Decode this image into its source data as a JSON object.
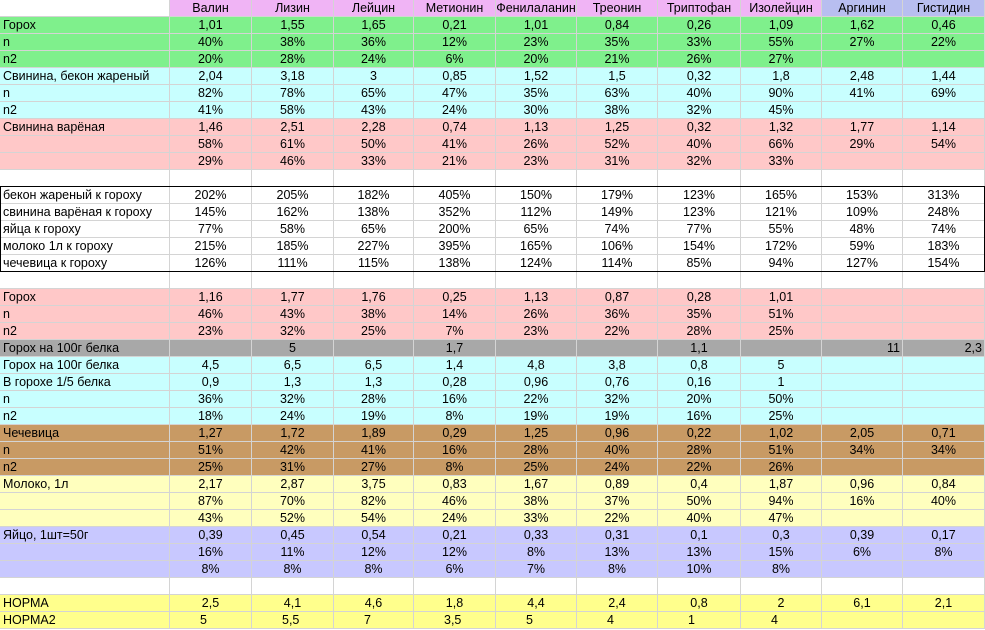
{
  "header": [
    "",
    "Валин",
    "Лизин",
    "Лейцин",
    "Метионин",
    "Фенилаланин",
    "Треонин",
    "Триптофан",
    "Изолейцин",
    "Аргинин",
    "Гистидин"
  ],
  "colors": {
    "header_purple": "#f0b4f5",
    "header_blue": "#b8bef0",
    "green": "#7ff08c",
    "cyan": "#c8ffff",
    "pink": "#ffc8c8",
    "grey": "#a8a8a8",
    "brown": "#c89a64",
    "yellow": "#ffffbe",
    "lavender": "#c8c8ff",
    "bright_yellow": "#ffff8c",
    "white": "#ffffff"
  },
  "rows": [
    {
      "bg": "green",
      "cells": [
        "Горох",
        "1,01",
        "1,55",
        "1,65",
        "0,21",
        "1,01",
        "0,84",
        "0,26",
        "1,09",
        "1,62",
        "0,46"
      ]
    },
    {
      "bg": "green",
      "cells": [
        "n",
        "40%",
        "38%",
        "36%",
        "12%",
        "23%",
        "35%",
        "33%",
        "55%",
        "27%",
        "22%"
      ]
    },
    {
      "bg": "green",
      "cells": [
        "n2",
        "20%",
        "28%",
        "24%",
        "6%",
        "20%",
        "21%",
        "26%",
        "27%",
        "",
        ""
      ]
    },
    {
      "bg": "cyan",
      "cells": [
        "Свинина, бекон жареный",
        "2,04",
        "3,18",
        "3",
        "0,85",
        "1,52",
        "1,5",
        "0,32",
        "1,8",
        "2,48",
        "1,44"
      ]
    },
    {
      "bg": "cyan",
      "cells": [
        "n",
        "82%",
        "78%",
        "65%",
        "47%",
        "35%",
        "63%",
        "40%",
        "90%",
        "41%",
        "69%"
      ]
    },
    {
      "bg": "cyan",
      "cells": [
        "n2",
        "41%",
        "58%",
        "43%",
        "24%",
        "30%",
        "38%",
        "32%",
        "45%",
        "",
        ""
      ]
    },
    {
      "bg": "pink",
      "cells": [
        "Свинина варёная",
        "1,46",
        "2,51",
        "2,28",
        "0,74",
        "1,13",
        "1,25",
        "0,32",
        "1,32",
        "1,77",
        "1,14"
      ]
    },
    {
      "bg": "pink",
      "cells": [
        "",
        "58%",
        "61%",
        "50%",
        "41%",
        "26%",
        "52%",
        "40%",
        "66%",
        "29%",
        "54%"
      ]
    },
    {
      "bg": "pink",
      "cells": [
        "",
        "29%",
        "46%",
        "33%",
        "21%",
        "23%",
        "31%",
        "32%",
        "33%",
        "",
        ""
      ]
    },
    {
      "bg": "white",
      "cells": [
        "",
        "",
        "",
        "",
        "",
        "",
        "",
        "",
        "",
        "",
        ""
      ]
    },
    {
      "bg": "white",
      "cells": [
        "бекон жареный к гороху",
        "202%",
        "205%",
        "182%",
        "405%",
        "150%",
        "179%",
        "123%",
        "165%",
        "153%",
        "313%"
      ]
    },
    {
      "bg": "white",
      "cells": [
        "свинина варёная к гороху",
        "145%",
        "162%",
        "138%",
        "352%",
        "112%",
        "149%",
        "123%",
        "121%",
        "109%",
        "248%"
      ]
    },
    {
      "bg": "white",
      "cells": [
        "яйца к гороху",
        "77%",
        "58%",
        "65%",
        "200%",
        "65%",
        "74%",
        "77%",
        "55%",
        "48%",
        "74%"
      ]
    },
    {
      "bg": "white",
      "cells": [
        "молоко 1л к гороху",
        "215%",
        "185%",
        "227%",
        "395%",
        "165%",
        "106%",
        "154%",
        "172%",
        "59%",
        "183%"
      ]
    },
    {
      "bg": "white",
      "cells": [
        "чечевица к гороху",
        "126%",
        "111%",
        "115%",
        "138%",
        "124%",
        "114%",
        "85%",
        "94%",
        "127%",
        "154%"
      ]
    },
    {
      "bg": "white",
      "cells": [
        "",
        "",
        "",
        "",
        "",
        "",
        "",
        "",
        "",
        "",
        ""
      ]
    },
    {
      "bg": "pink",
      "cells": [
        "Горох",
        "1,16",
        "1,77",
        "1,76",
        "0,25",
        "1,13",
        "0,87",
        "0,28",
        "1,01",
        "",
        ""
      ]
    },
    {
      "bg": "pink",
      "cells": [
        "n",
        "46%",
        "43%",
        "38%",
        "14%",
        "26%",
        "36%",
        "35%",
        "51%",
        "",
        ""
      ]
    },
    {
      "bg": "pink",
      "cells": [
        "n2",
        "23%",
        "32%",
        "25%",
        "7%",
        "23%",
        "22%",
        "28%",
        "25%",
        "",
        ""
      ]
    },
    {
      "bg": "grey",
      "special": "grey",
      "cells": [
        "Горох на 100г белка",
        "",
        "5",
        "",
        "1,7",
        "",
        "",
        "1,1",
        "",
        "11",
        "2,3"
      ]
    },
    {
      "bg": "cyan",
      "cells": [
        "Горох на 100г белка",
        "4,5",
        "6,5",
        "6,5",
        "1,4",
        "4,8",
        "3,8",
        "0,8",
        "5",
        "",
        ""
      ]
    },
    {
      "bg": "cyan",
      "cells": [
        "В горохе 1/5 белка",
        "0,9",
        "1,3",
        "1,3",
        "0,28",
        "0,96",
        "0,76",
        "0,16",
        "1",
        "",
        ""
      ]
    },
    {
      "bg": "cyan",
      "cells": [
        "n",
        "36%",
        "32%",
        "28%",
        "16%",
        "22%",
        "32%",
        "20%",
        "50%",
        "",
        ""
      ]
    },
    {
      "bg": "cyan",
      "cells": [
        "n2",
        "18%",
        "24%",
        "19%",
        "8%",
        "19%",
        "19%",
        "16%",
        "25%",
        "",
        ""
      ]
    },
    {
      "bg": "brown",
      "cells": [
        "Чечевица",
        "1,27",
        "1,72",
        "1,89",
        "0,29",
        "1,25",
        "0,96",
        "0,22",
        "1,02",
        "2,05",
        "0,71"
      ]
    },
    {
      "bg": "brown",
      "cells": [
        "n",
        "51%",
        "42%",
        "41%",
        "16%",
        "28%",
        "40%",
        "28%",
        "51%",
        "34%",
        "34%"
      ]
    },
    {
      "bg": "brown",
      "cells": [
        "n2",
        "25%",
        "31%",
        "27%",
        "8%",
        "25%",
        "24%",
        "22%",
        "26%",
        "",
        ""
      ]
    },
    {
      "bg": "yellow",
      "cells": [
        "Молоко, 1л",
        "2,17",
        "2,87",
        "3,75",
        "0,83",
        "1,67",
        "0,89",
        "0,4",
        "1,87",
        "0,96",
        "0,84"
      ]
    },
    {
      "bg": "yellow",
      "cells": [
        "",
        "87%",
        "70%",
        "82%",
        "46%",
        "38%",
        "37%",
        "50%",
        "94%",
        "16%",
        "40%"
      ]
    },
    {
      "bg": "yellow",
      "cells": [
        "",
        "43%",
        "52%",
        "54%",
        "24%",
        "33%",
        "22%",
        "40%",
        "47%",
        "",
        ""
      ]
    },
    {
      "bg": "lavender",
      "cells": [
        "Яйцо, 1шт=50г",
        "0,39",
        "0,45",
        "0,54",
        "0,21",
        "0,33",
        "0,31",
        "0,1",
        "0,3",
        "0,39",
        "0,17"
      ]
    },
    {
      "bg": "lavender",
      "cells": [
        "",
        "16%",
        "11%",
        "12%",
        "12%",
        "8%",
        "13%",
        "13%",
        "15%",
        "6%",
        "8%"
      ]
    },
    {
      "bg": "lavender",
      "cells": [
        "",
        "8%",
        "8%",
        "8%",
        "6%",
        "7%",
        "8%",
        "10%",
        "8%",
        "",
        ""
      ]
    },
    {
      "bg": "white",
      "cells": [
        "",
        "",
        "",
        "",
        "",
        "",
        "",
        "",
        "",
        "",
        ""
      ]
    },
    {
      "bg": "bright_yellow",
      "cells": [
        "НОРМА",
        "2,5",
        "4,1",
        "4,6",
        "1,8",
        "4,4",
        "2,4",
        "0,8",
        "2",
        "6,1",
        "2,1"
      ]
    },
    {
      "bg": "bright_yellow",
      "special": "left",
      "cells": [
        "НОРМА2",
        "5",
        "5,5",
        "7",
        "3,5",
        "5",
        "4",
        "1",
        "4",
        "",
        ""
      ]
    }
  ]
}
